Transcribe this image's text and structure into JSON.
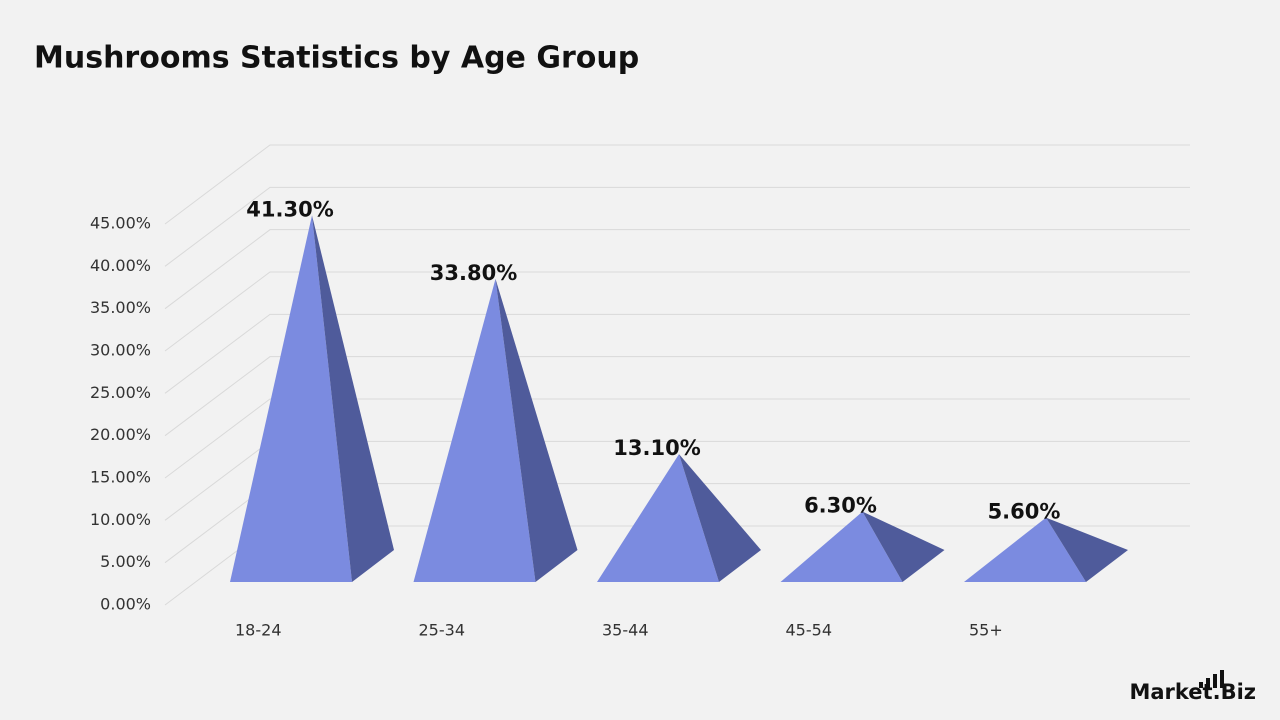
{
  "chart_data": {
    "type": "pyramid",
    "title": "Mushrooms Statistics by Age Group",
    "categories": [
      "18-24",
      "25-34",
      "35-44",
      "45-54",
      "55+"
    ],
    "values": [
      41.3,
      33.8,
      13.1,
      6.3,
      5.6
    ],
    "value_labels": [
      "41.30%",
      "33.80%",
      "13.10%",
      "6.30%",
      "5.60%"
    ],
    "color": "#7b8be0",
    "ylim": [
      0,
      45
    ],
    "yticks": [
      {
        "value": 0,
        "label": "0.00%"
      },
      {
        "value": 5,
        "label": "5.00%"
      },
      {
        "value": 10,
        "label": "10.00%"
      },
      {
        "value": 15,
        "label": "15.00%"
      },
      {
        "value": 20,
        "label": "20.00%"
      },
      {
        "value": 25,
        "label": "25.00%"
      },
      {
        "value": 30,
        "label": "30.00%"
      },
      {
        "value": 35,
        "label": "35.00%"
      },
      {
        "value": 40,
        "label": "40.00%"
      },
      {
        "value": 45,
        "label": "45.00%"
      }
    ],
    "grid": true
  },
  "brand": "Market.Biz"
}
